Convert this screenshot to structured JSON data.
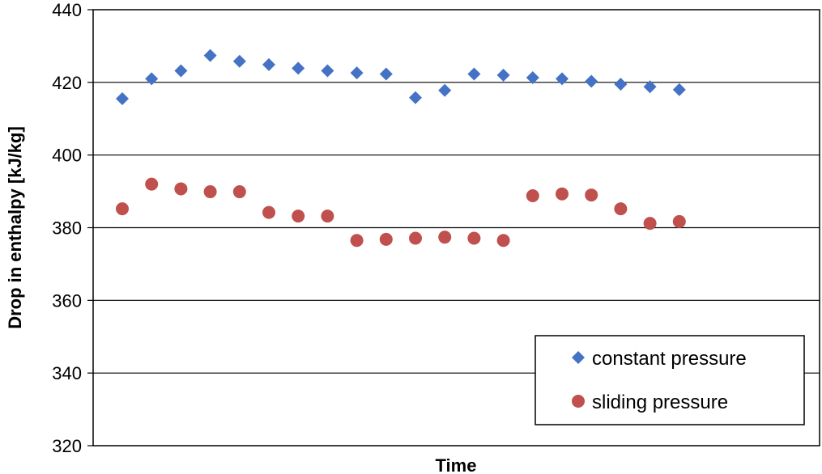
{
  "chart_data": {
    "type": "scatter",
    "xlabel": "Time",
    "ylabel": "Drop in enthalpy [kJ/kg]",
    "ylim": [
      320,
      440
    ],
    "yticks": [
      320,
      340,
      360,
      380,
      400,
      420,
      440
    ],
    "grid": "horizontal",
    "legend_position": "bottom-right",
    "x": [
      1,
      2,
      3,
      4,
      5,
      6,
      7,
      8,
      9,
      10,
      11,
      12,
      13,
      14,
      15,
      16,
      17,
      18,
      19,
      20
    ],
    "series": [
      {
        "name": "constant pressure",
        "marker": "diamond",
        "color": "#4472C4",
        "values": [
          415.5,
          421,
          423.2,
          427.4,
          425.8,
          424.9,
          423.9,
          423.2,
          422.6,
          422.3,
          415.8,
          417.8,
          422.3,
          422.0,
          421.3,
          421.0,
          420.3,
          419.5,
          418.8,
          418.0
        ]
      },
      {
        "name": "sliding pressure",
        "marker": "circle",
        "color": "#C0504D",
        "values": [
          385.2,
          392.0,
          390.7,
          389.9,
          389.9,
          384.2,
          383.2,
          383.2,
          376.5,
          376.8,
          377.1,
          377.4,
          377.1,
          376.5,
          388.8,
          389.3,
          389.0,
          385.2,
          381.2,
          381.7
        ]
      }
    ]
  }
}
